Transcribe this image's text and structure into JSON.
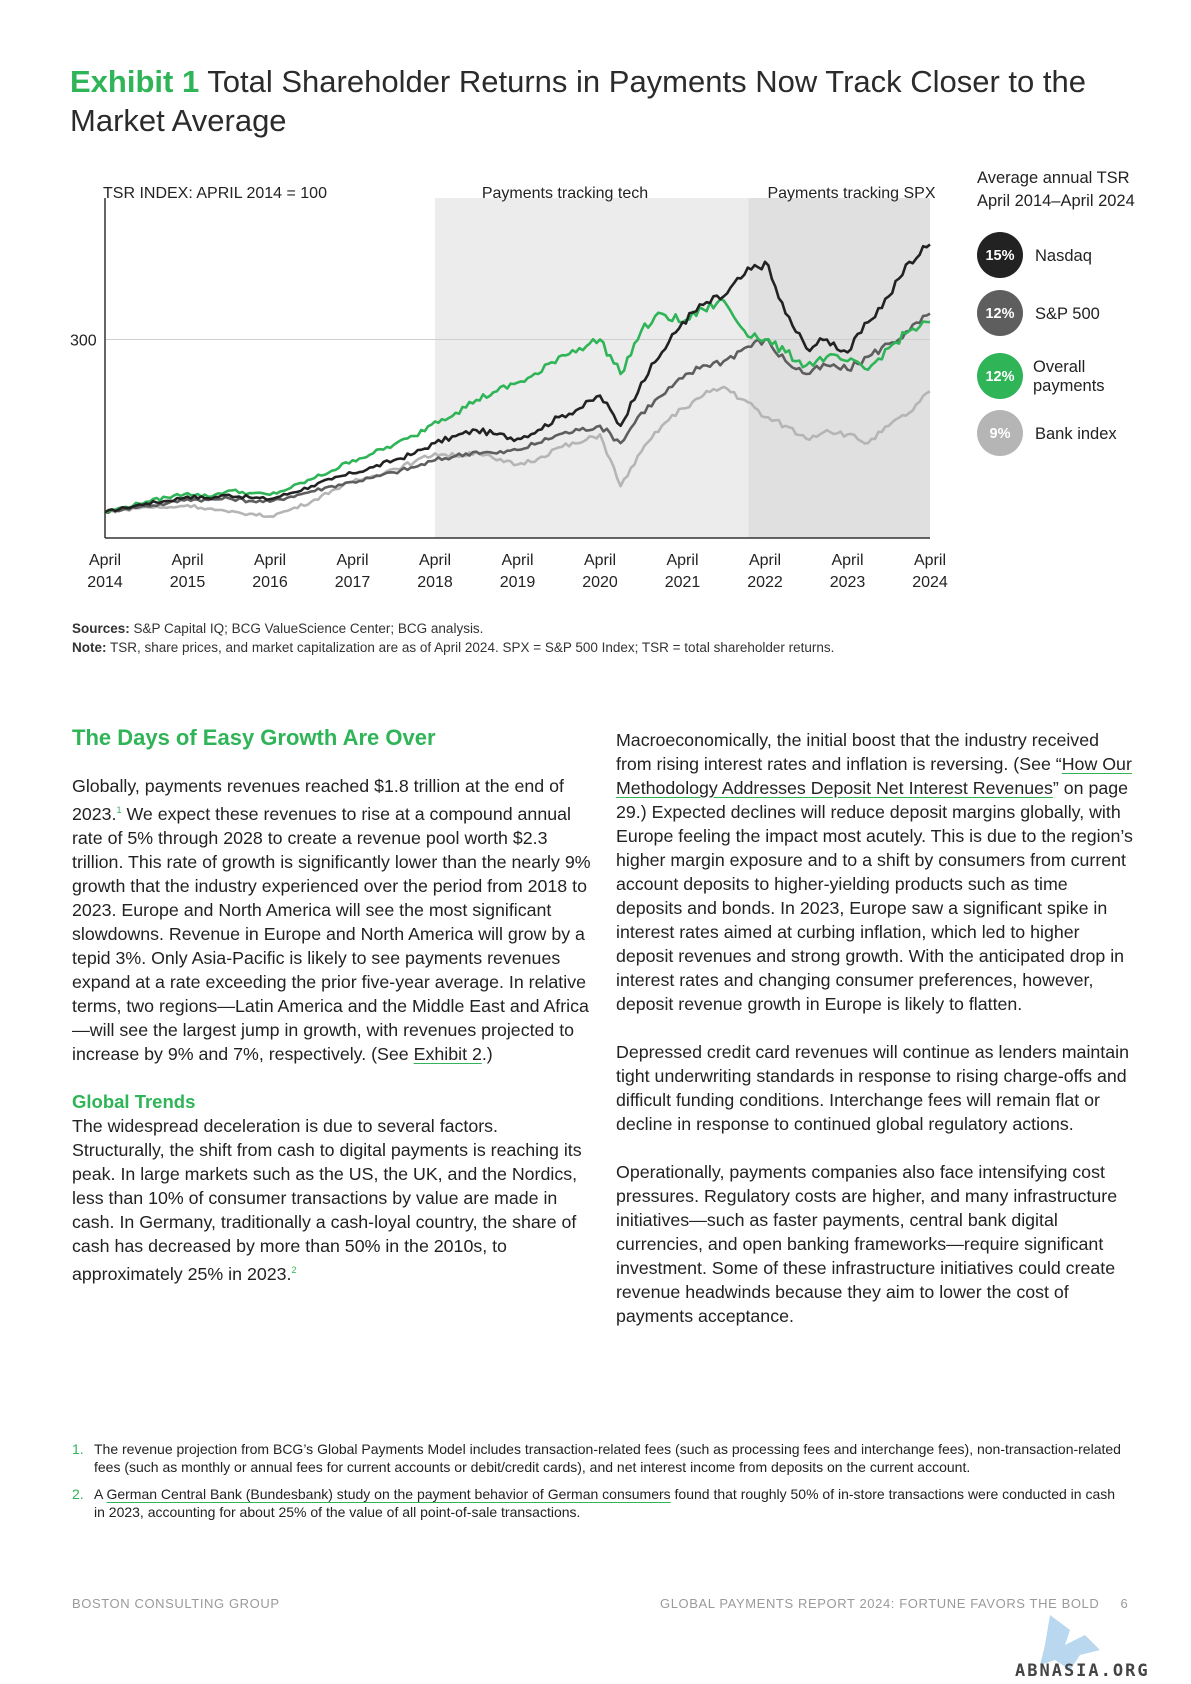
{
  "exhibit": {
    "number": "Exhibit 1",
    "title": "Total Shareholder Returns in Payments Now Track Closer to the Market Average"
  },
  "chart_data": {
    "type": "line",
    "y_axis_label": "TSR INDEX: APRIL 2014 = 100",
    "y_ticks": [
      300
    ],
    "ylim": [
      70,
      450
    ],
    "x_ticks": [
      {
        "line1": "April",
        "line2": "2014"
      },
      {
        "line1": "April",
        "line2": "2015"
      },
      {
        "line1": "April",
        "line2": "2016"
      },
      {
        "line1": "April",
        "line2": "2017"
      },
      {
        "line1": "April",
        "line2": "2018"
      },
      {
        "line1": "April",
        "line2": "2019"
      },
      {
        "line1": "April",
        "line2": "2020"
      },
      {
        "line1": "April",
        "line2": "2021"
      },
      {
        "line1": "April",
        "line2": "2022"
      },
      {
        "line1": "April",
        "line2": "2023"
      },
      {
        "line1": "April",
        "line2": "2024"
      }
    ],
    "shaded_regions": [
      {
        "label": "Payments tracking tech",
        "from": 2018,
        "to": 2024,
        "color": "#ececec"
      },
      {
        "label": "Payments tracking SPX",
        "from": 2021.8,
        "to": 2024,
        "color": "#e0e0e0"
      }
    ],
    "legend_title": {
      "line1": "Average annual TSR",
      "line2": "April 2014–April 2024"
    },
    "x": [
      2014.0,
      2014.25,
      2014.5,
      2014.75,
      2015.0,
      2015.25,
      2015.5,
      2015.75,
      2016.0,
      2016.25,
      2016.5,
      2016.75,
      2017.0,
      2017.25,
      2017.5,
      2017.75,
      2018.0,
      2018.25,
      2018.5,
      2018.75,
      2019.0,
      2019.25,
      2019.5,
      2019.75,
      2020.0,
      2020.25,
      2020.5,
      2020.75,
      2021.0,
      2021.25,
      2021.5,
      2021.75,
      2022.0,
      2022.25,
      2022.5,
      2022.75,
      2023.0,
      2023.25,
      2023.5,
      2023.75,
      2024.0
    ],
    "series": [
      {
        "name": "Nasdaq",
        "badge": "15%",
        "color": "#222222",
        "width": 2.6,
        "values": [
          100,
          105,
          110,
          113,
          118,
          116,
          120,
          117,
          115,
          122,
          130,
          138,
          145,
          152,
          160,
          168,
          180,
          188,
          195,
          190,
          185,
          195,
          210,
          220,
          235,
          200,
          250,
          285,
          320,
          340,
          350,
          375,
          390,
          330,
          290,
          300,
          285,
          320,
          350,
          390,
          410
        ]
      },
      {
        "name": "S&P 500",
        "badge": "12%",
        "color": "#5e5e5e",
        "width": 2.6,
        "values": [
          100,
          104,
          107,
          110,
          115,
          114,
          116,
          113,
          112,
          118,
          124,
          130,
          135,
          140,
          146,
          152,
          160,
          165,
          170,
          168,
          172,
          180,
          190,
          195,
          200,
          180,
          215,
          235,
          255,
          270,
          275,
          290,
          300,
          275,
          260,
          270,
          265,
          280,
          295,
          310,
          330
        ]
      },
      {
        "name": "Overall payments",
        "badge": "12%",
        "color": "#2fb457",
        "width": 2.6,
        "values": [
          100,
          106,
          112,
          117,
          122,
          118,
          125,
          122,
          120,
          128,
          138,
          148,
          160,
          168,
          178,
          188,
          205,
          215,
          230,
          240,
          250,
          260,
          280,
          290,
          300,
          260,
          310,
          330,
          320,
          335,
          345,
          310,
          300,
          285,
          270,
          280,
          275,
          265,
          290,
          310,
          320
        ]
      },
      {
        "name": "Bank index",
        "badge": "9%",
        "color": "#b5b5b5",
        "width": 2.6,
        "values": [
          100,
          103,
          106,
          105,
          108,
          104,
          100,
          98,
          95,
          103,
          112,
          125,
          135,
          142,
          150,
          158,
          168,
          165,
          170,
          160,
          155,
          162,
          175,
          180,
          190,
          130,
          170,
          200,
          220,
          235,
          245,
          230,
          210,
          200,
          185,
          195,
          190,
          180,
          200,
          215,
          240
        ]
      }
    ]
  },
  "sources": {
    "sources_label": "Sources:",
    "sources_text": " S&P Capital IQ; BCG ValueScience Center; BCG analysis.",
    "note_label": "Note:",
    "note_text": " TSR, share prices, and market capitalization are as of April 2024. SPX = S&P 500 Index; TSR = total shareholder returns."
  },
  "left_column": {
    "heading": "The Days of Easy Growth Are Over",
    "p1_a": "Globally, payments revenues reached $1.8 trillion at the end of 2023.",
    "p1_sup": "1",
    "p1_b": " We expect these revenues to rise at a compound annual rate of 5% through 2028 to create a revenue pool worth $2.3 trillion. This rate of growth is significantly lower than the nearly 9% growth that the industry experienced over the period from 2018 to 2023. Europe and North America will see the most significant slowdowns. Revenue in Europe and North America will grow by a tepid 3%. Only Asia-Pacific is likely to see payments revenues expand at a rate exceeding the prior five-year average. In relative terms, two regions—Latin America and the Middle East and Africa—will see the largest jump in growth, with revenues projected to increase by 9% and 7%, respectively. (See ",
    "p1_link": "Exhibit 2",
    "p1_c": ".)",
    "subheading": "Global Trends",
    "p2_a": "The widespread deceleration is due to several factors. Structurally, the shift from cash to digital payments is reaching its peak. In large markets such as the US, the UK, and the Nordics, less than 10% of consumer transactions by value are made in cash. In Germany, traditionally a cash-loyal country, the share of cash has decreased by more than 50% in the 2010s, to approximately 25% in 2023.",
    "p2_sup": "2"
  },
  "right_column": {
    "p1_a": "Macroeconomically, the initial boost that the industry received from rising interest rates and inflation is reversing. (See “",
    "p1_link": "How Our Methodology Addresses Deposit Net Interest Revenues",
    "p1_b": "” on page 29.) Expected declines will reduce deposit margins globally, with Europe feeling the impact most acutely. This is due to the region’s higher margin exposure and to a shift by consumers from current account deposits to higher-yielding products such as time deposits and bonds. In 2023, Europe saw a significant spike in interest rates aimed at curbing inflation, which led to higher deposit revenues and strong growth. With the anticipated drop in interest rates and changing consumer preferences, however, deposit revenue growth in Europe is likely to flatten.",
    "p2": "Depressed credit card revenues will continue as lenders maintain tight underwriting standards in response to rising charge-offs and difficult funding conditions. Interchange fees will remain flat or decline in response to continued global regulatory actions.",
    "p3": "Operationally, payments companies also face intensifying cost pressures. Regulatory costs are higher, and many infrastructure initiatives—such as faster payments, central bank digital currencies, and open banking frameworks—require significant investment. Some of these infrastructure initiatives could create revenue headwinds because they aim to lower the cost of payments acceptance."
  },
  "footnotes": {
    "fn1_num": "1.",
    "fn1_text": "The revenue projection from BCG’s Global Payments Model includes transaction-related fees (such as processing fees and interchange fees), non-transaction-related fees (such as monthly or annual fees for current accounts or debit/credit cards), and net interest income from deposits on the current account.",
    "fn2_num": "2.",
    "fn2_a": "A ",
    "fn2_link": "German Central Bank (Bundesbank) study on the payment behavior of German consumers",
    "fn2_b": " found that roughly 50% of in-store transactions were conducted in cash in 2023, accounting for about 25% of the value of all point-of-sale transactions."
  },
  "footer": {
    "left": "BOSTON CONSULTING GROUP",
    "right": "GLOBAL PAYMENTS REPORT 2024: FORTUNE FAVORS THE BOLD",
    "page": "6"
  },
  "watermark": {
    "text": "ABNASIA.ORG"
  }
}
